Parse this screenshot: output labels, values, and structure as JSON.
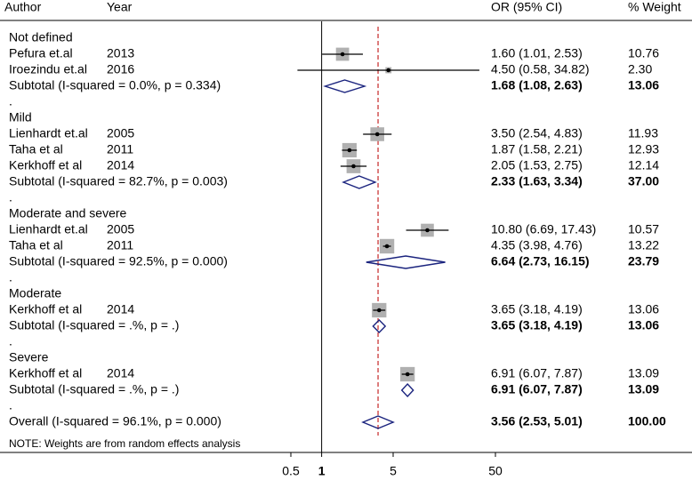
{
  "chart_data": {
    "type": "forest",
    "headers": {
      "author": "Author",
      "year": "Year",
      "ci": "OR (95% CI)",
      "weight": "% Weight"
    },
    "note": "NOTE: Weights are from random effects analysis",
    "log_scale": true,
    "reference_line": 1,
    "xlim": [
      0.5,
      50
    ],
    "xticks": [
      0.5,
      1,
      5,
      50
    ],
    "box_color": "#b0b0b0",
    "diamond_color": "#1a237e",
    "overall_line_color": "#c62828",
    "rows": [
      {
        "kind": "group",
        "label": "Not defined"
      },
      {
        "kind": "study",
        "label": "Pefura et.al",
        "year": "2013",
        "or": 1.6,
        "lo": 1.01,
        "hi": 2.53,
        "weight": 10.76,
        "ci_label": "1.60 (1.01, 2.53)",
        "weight_label": "10.76"
      },
      {
        "kind": "study",
        "label": "Iroezindu et.al",
        "year": "2016",
        "or": 4.5,
        "lo": 0.58,
        "hi": 34.82,
        "weight": 2.3,
        "ci_label": "4.50 (0.58, 34.82)",
        "weight_label": "2.30"
      },
      {
        "kind": "subtotal",
        "label": "Subtotal  (I-squared = 0.0%, p = 0.334)",
        "or": 1.68,
        "lo": 1.08,
        "hi": 2.63,
        "weight": 13.06,
        "ci_label": "1.68 (1.08, 2.63)",
        "weight_label": "13.06"
      },
      {
        "kind": "blank",
        "label": "."
      },
      {
        "kind": "group",
        "label": "Mild"
      },
      {
        "kind": "study",
        "label": "Lienhardt et.al",
        "year": "2005",
        "or": 3.5,
        "lo": 2.54,
        "hi": 4.83,
        "weight": 11.93,
        "ci_label": "3.50 (2.54, 4.83)",
        "weight_label": "11.93"
      },
      {
        "kind": "study",
        "label": "Taha et al",
        "year": "2011",
        "or": 1.87,
        "lo": 1.58,
        "hi": 2.21,
        "weight": 12.93,
        "ci_label": "1.87 (1.58, 2.21)",
        "weight_label": "12.93"
      },
      {
        "kind": "study",
        "label": "Kerkhoff et al",
        "year": "2014",
        "or": 2.05,
        "lo": 1.53,
        "hi": 2.75,
        "weight": 12.14,
        "ci_label": "2.05 (1.53, 2.75)",
        "weight_label": "12.14"
      },
      {
        "kind": "subtotal",
        "label": "Subtotal  (I-squared = 82.7%, p = 0.003)",
        "or": 2.33,
        "lo": 1.63,
        "hi": 3.34,
        "weight": 37.0,
        "ci_label": "2.33 (1.63, 3.34)",
        "weight_label": "37.00"
      },
      {
        "kind": "blank",
        "label": "."
      },
      {
        "kind": "group",
        "label": "Moderate and severe"
      },
      {
        "kind": "study",
        "label": "Lienhardt et.al",
        "year": "2005",
        "or": 10.8,
        "lo": 6.69,
        "hi": 17.43,
        "weight": 10.57,
        "ci_label": "10.80 (6.69, 17.43)",
        "weight_label": "10.57"
      },
      {
        "kind": "study",
        "label": "Taha et al",
        "year": "2011",
        "or": 4.35,
        "lo": 3.98,
        "hi": 4.76,
        "weight": 13.22,
        "ci_label": "4.35 (3.98, 4.76)",
        "weight_label": "13.22"
      },
      {
        "kind": "subtotal",
        "label": "Subtotal  (I-squared = 92.5%, p = 0.000)",
        "or": 6.64,
        "lo": 2.73,
        "hi": 16.15,
        "weight": 23.79,
        "ci_label": "6.64 (2.73, 16.15)",
        "weight_label": "23.79"
      },
      {
        "kind": "blank",
        "label": "."
      },
      {
        "kind": "group",
        "label": "Moderate"
      },
      {
        "kind": "study",
        "label": "Kerkhoff et al",
        "year": "2014",
        "or": 3.65,
        "lo": 3.18,
        "hi": 4.19,
        "weight": 13.06,
        "ci_label": "3.65 (3.18, 4.19)",
        "weight_label": "13.06"
      },
      {
        "kind": "subtotal",
        "label": "Subtotal  (I-squared = .%, p = .)",
        "or": 3.65,
        "lo": 3.18,
        "hi": 4.19,
        "weight": 13.06,
        "ci_label": "3.65 (3.18, 4.19)",
        "weight_label": "13.06"
      },
      {
        "kind": "blank",
        "label": "."
      },
      {
        "kind": "group",
        "label": "Severe"
      },
      {
        "kind": "study",
        "label": "Kerkhoff et al",
        "year": "2014",
        "or": 6.91,
        "lo": 6.07,
        "hi": 7.87,
        "weight": 13.09,
        "ci_label": "6.91 (6.07, 7.87)",
        "weight_label": "13.09"
      },
      {
        "kind": "subtotal",
        "label": "Subtotal  (I-squared = .%, p = .)",
        "or": 6.91,
        "lo": 6.07,
        "hi": 7.87,
        "weight": 13.09,
        "ci_label": "6.91 (6.07, 7.87)",
        "weight_label": "13.09"
      },
      {
        "kind": "blank",
        "label": "."
      },
      {
        "kind": "overall",
        "label": "Overall  (I-squared = 96.1%, p = 0.000)",
        "or": 3.56,
        "lo": 2.53,
        "hi": 5.01,
        "weight": 100.0,
        "ci_label": "3.56 (2.53, 5.01)",
        "weight_label": "100.00"
      }
    ]
  }
}
